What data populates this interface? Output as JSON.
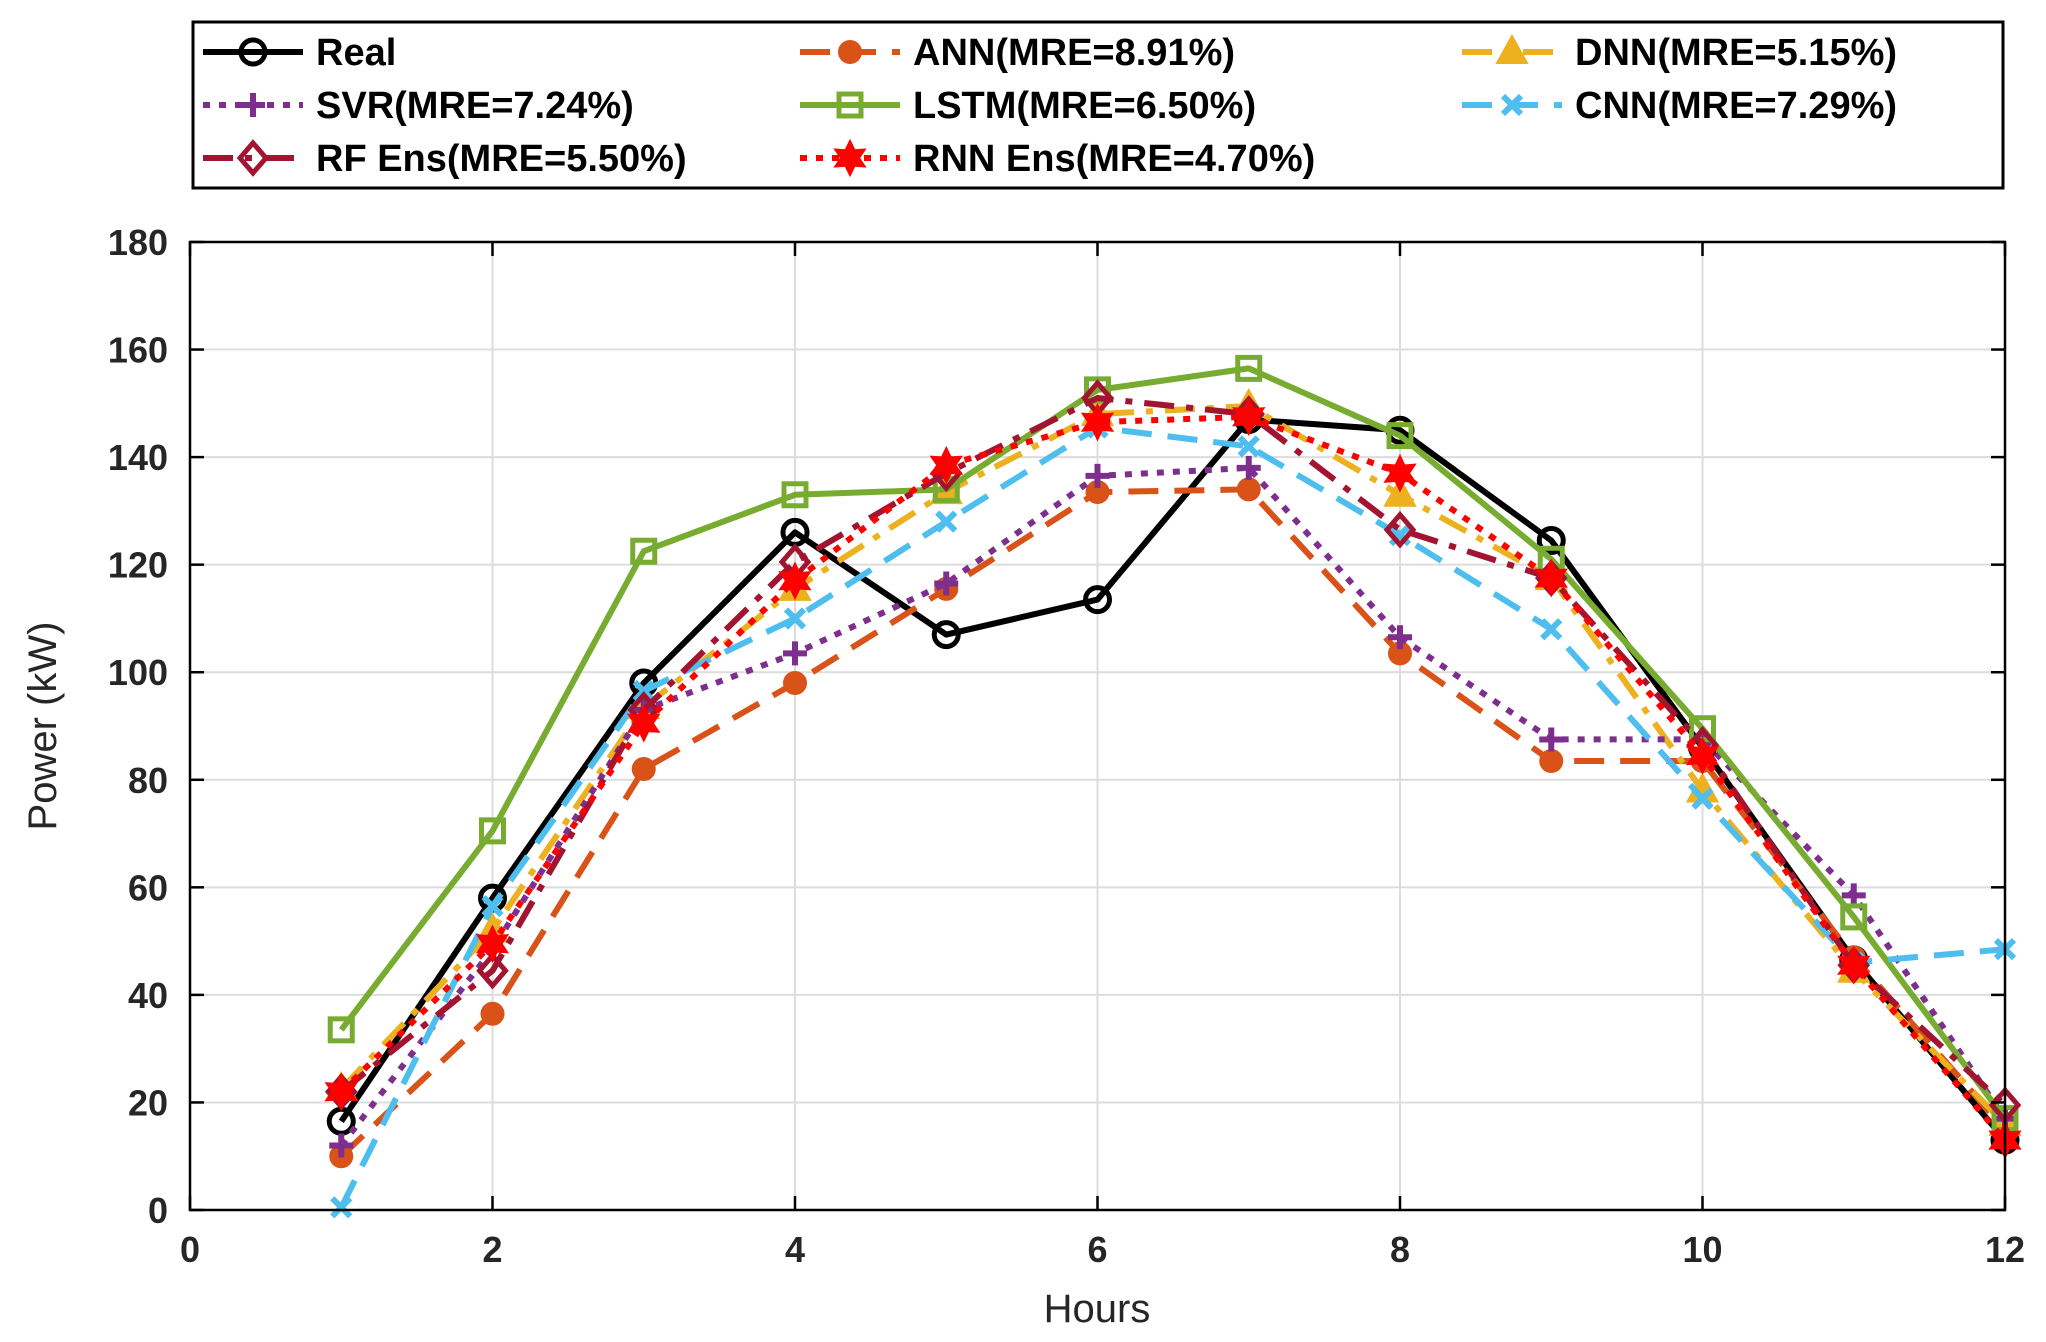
{
  "chart_data": {
    "type": "line",
    "xlabel": "Hours",
    "ylabel": "Power (kW)",
    "xlim": [
      0,
      12
    ],
    "ylim": [
      0,
      180
    ],
    "xticks": [
      0,
      2,
      4,
      6,
      8,
      10,
      12
    ],
    "yticks": [
      0,
      20,
      40,
      60,
      80,
      100,
      120,
      140,
      160,
      180
    ],
    "grid": true,
    "legend_position": "top",
    "x": [
      1,
      2,
      3,
      4,
      5,
      6,
      7,
      8,
      9,
      10,
      11,
      12
    ],
    "series": [
      {
        "name": "Real",
        "color": "#000000",
        "dash": "solid",
        "marker": "circle-open",
        "values": [
          16.5,
          58,
          98,
          126,
          107,
          113.5,
          147,
          145,
          124.5,
          86,
          46.5,
          13
        ]
      },
      {
        "name": "ANN(MRE=8.91%)",
        "color": "#D95319",
        "dash": "dashed",
        "marker": "circle-filled",
        "values": [
          10,
          36.5,
          82,
          98,
          115.5,
          133.5,
          134,
          103.5,
          83.5,
          83.5,
          47,
          15
        ]
      },
      {
        "name": "DNN(MRE=5.15%)",
        "color": "#EDB120",
        "dash": "dashdot",
        "marker": "triangle",
        "values": [
          22.5,
          52,
          93.5,
          115.5,
          133.5,
          148,
          149.5,
          133,
          117.5,
          78,
          44.5,
          16
        ]
      },
      {
        "name": "SVR(MRE=7.24%)",
        "color": "#7E2F8E",
        "dash": "dotted",
        "marker": "plus",
        "values": [
          12,
          48.5,
          93,
          103.5,
          116.5,
          136.5,
          138,
          106.5,
          87.5,
          87.5,
          58.5,
          17
        ]
      },
      {
        "name": "LSTM(MRE=6.50%)",
        "color": "#77AC30",
        "dash": "solid",
        "marker": "square-open",
        "values": [
          33.5,
          70.5,
          122.5,
          133,
          134,
          152.5,
          156.5,
          144,
          121,
          89.5,
          54.5,
          17
        ]
      },
      {
        "name": "CNN(MRE=7.29%)",
        "color": "#4DBEEE",
        "dash": "dashed",
        "marker": "x",
        "values": [
          0.5,
          56.5,
          96.5,
          110,
          128,
          145.5,
          142,
          125.5,
          108,
          76.5,
          46,
          48.5
        ]
      },
      {
        "name": "RF Ens(MRE=5.50%)",
        "color": "#A2142F",
        "dash": "dashdot",
        "marker": "diamond",
        "values": [
          22,
          44.5,
          93,
          120.5,
          137,
          151,
          148,
          126.5,
          117.5,
          86.5,
          45.5,
          19.5
        ]
      },
      {
        "name": "RNN Ens(MRE=4.70%)",
        "color": "#FF0000",
        "dash": "dotted",
        "marker": "hexagram",
        "values": [
          22,
          49.5,
          90.5,
          117,
          138.5,
          146.5,
          147.5,
          137,
          117.5,
          84.5,
          45.5,
          13
        ]
      }
    ]
  }
}
